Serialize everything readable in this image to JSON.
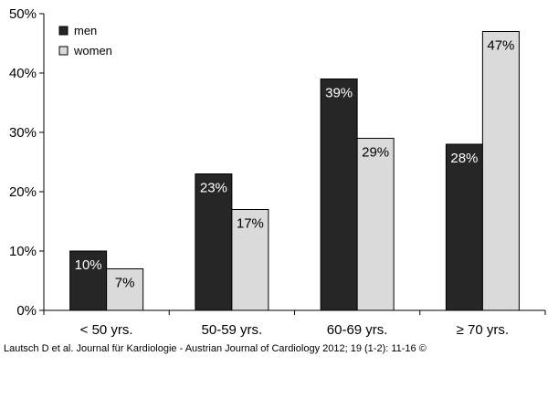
{
  "chart_data": {
    "type": "bar",
    "categories": [
      "< 50 yrs.",
      "50-59 yrs.",
      "60-69 yrs.",
      "≥ 70 yrs."
    ],
    "series": [
      {
        "name": "men",
        "values": [
          10,
          23,
          39,
          28
        ],
        "labels": [
          "10%",
          "23%",
          "39%",
          "28%"
        ],
        "color": "#262626",
        "label_color": "#ffffff"
      },
      {
        "name": "women",
        "values": [
          7,
          17,
          29,
          47
        ],
        "labels": [
          "7%",
          "17%",
          "29%",
          "47%"
        ],
        "color": "#dadada",
        "label_color": "#000000"
      }
    ],
    "title": "",
    "xlabel": "",
    "ylabel": "",
    "ylim": [
      0,
      50
    ],
    "yticks": [
      0,
      10,
      20,
      30,
      40,
      50
    ],
    "ytick_labels": [
      "0%",
      "10%",
      "20%",
      "30%",
      "40%",
      "50%"
    ],
    "grid": false,
    "legend_position": "top-left"
  },
  "source_text": "Lautsch D et al. Journal für Kardiologie - Austrian Journal of Cardiology 2012; 19 (1-2): 11-16 ©"
}
